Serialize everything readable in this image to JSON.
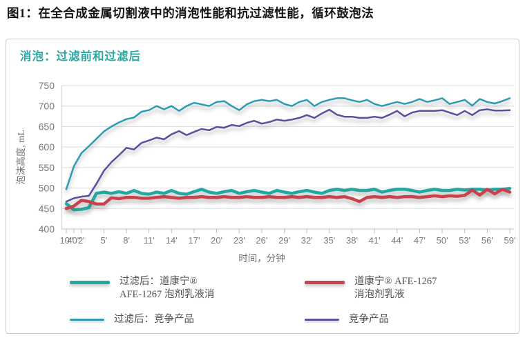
{
  "page_title": "图1：在全合成金属切割液中的消泡性能和抗过滤性能，循环鼓泡法",
  "chart": {
    "title": "消泡：过滤前和过滤后",
    "title_color": "#2fa7a2",
    "legend": [
      {
        "line1": "过滤后：道康宁®",
        "line2": "AFE-1267 泡剂乳液消",
        "color": "#21a8a0",
        "thick": true
      },
      {
        "line1": "道康宁® AFE-1267",
        "line2": "消泡剂乳液",
        "color": "#c8434e",
        "thick": true
      },
      {
        "line1": "过滤后：竞争产品",
        "line2": "",
        "color": "#2d9bb4",
        "thick": false
      },
      {
        "line1": "竞争产品",
        "line2": "",
        "color": "#57519e",
        "thick": false
      }
    ]
  },
  "chart_data": {
    "type": "line",
    "title": "消泡：过滤前和过滤后",
    "xlabel": "时间，分钟",
    "ylabel": "泡沫高度, mL",
    "ylim": [
      400,
      750
    ],
    "ytick_step": 50,
    "grid": true,
    "legend_position": "bottom",
    "n_points": 60,
    "tick_labels": [
      "10\"",
      "40\"",
      "2'",
      "5'",
      "8'",
      "11'",
      "14'",
      "17'",
      "20'",
      "23'",
      "26'",
      "29'",
      "32'",
      "35'",
      "38'",
      "41'",
      "44'",
      "47'",
      "50'",
      "53'",
      "56'",
      "59'"
    ],
    "tick_indices": [
      0,
      1,
      2,
      5,
      8,
      11,
      14,
      17,
      20,
      23,
      26,
      29,
      32,
      35,
      38,
      41,
      44,
      47,
      50,
      53,
      56,
      59
    ],
    "series": [
      {
        "name": "过滤后：道康宁® AFE-1267 泡剂乳液消",
        "color": "#21a8a0",
        "width": 4.5,
        "values": [
          462,
          447,
          448,
          452,
          487,
          490,
          487,
          491,
          487,
          494,
          487,
          485,
          490,
          487,
          494,
          487,
          485,
          491,
          497,
          490,
          487,
          491,
          494,
          487,
          491,
          494,
          490,
          487,
          494,
          490,
          487,
          491,
          494,
          490,
          487,
          494,
          497,
          494,
          497,
          494,
          494,
          497,
          490,
          494,
          497,
          497,
          494,
          490,
          494,
          497,
          494,
          494,
          497,
          495,
          497,
          497,
          495,
          497,
          497,
          499
        ]
      },
      {
        "name": "道康宁® AFE-1267 消泡剂乳液",
        "color": "#c8434e",
        "width": 4.5,
        "values": [
          450,
          456,
          470,
          467,
          461,
          461,
          476,
          474,
          477,
          477,
          475,
          475,
          477,
          479,
          477,
          475,
          477,
          477,
          479,
          477,
          477,
          479,
          477,
          477,
          479,
          477,
          477,
          479,
          477,
          477,
          479,
          477,
          479,
          477,
          477,
          479,
          477,
          479,
          474,
          467,
          477,
          479,
          477,
          479,
          477,
          479,
          479,
          477,
          479,
          481,
          479,
          481,
          480,
          482,
          495,
          483,
          497,
          486,
          497,
          490
        ]
      },
      {
        "name": "过滤后：竞争产品",
        "color": "#2d9bb4",
        "width": 2.5,
        "values": [
          497,
          553,
          585,
          602,
          620,
          638,
          650,
          660,
          668,
          672,
          686,
          690,
          700,
          692,
          700,
          688,
          700,
          708,
          704,
          700,
          710,
          712,
          700,
          690,
          704,
          712,
          715,
          712,
          715,
          705,
          700,
          710,
          715,
          700,
          710,
          715,
          719,
          719,
          714,
          710,
          715,
          705,
          700,
          705,
          710,
          705,
          710,
          717,
          710,
          714,
          719,
          705,
          710,
          715,
          701,
          717,
          710,
          706,
          712,
          719
        ]
      },
      {
        "name": "竞争产品",
        "color": "#57519e",
        "width": 2.5,
        "values": [
          467,
          475,
          479,
          481,
          510,
          542,
          563,
          580,
          598,
          594,
          610,
          616,
          623,
          619,
          631,
          639,
          629,
          637,
          644,
          641,
          649,
          647,
          654,
          651,
          659,
          664,
          657,
          661,
          667,
          664,
          667,
          671,
          678,
          671,
          682,
          691,
          679,
          674,
          674,
          671,
          671,
          674,
          671,
          679,
          688,
          675,
          684,
          688,
          688,
          688,
          690,
          684,
          678,
          688,
          678,
          690,
          692,
          689,
          689,
          690
        ]
      }
    ]
  }
}
